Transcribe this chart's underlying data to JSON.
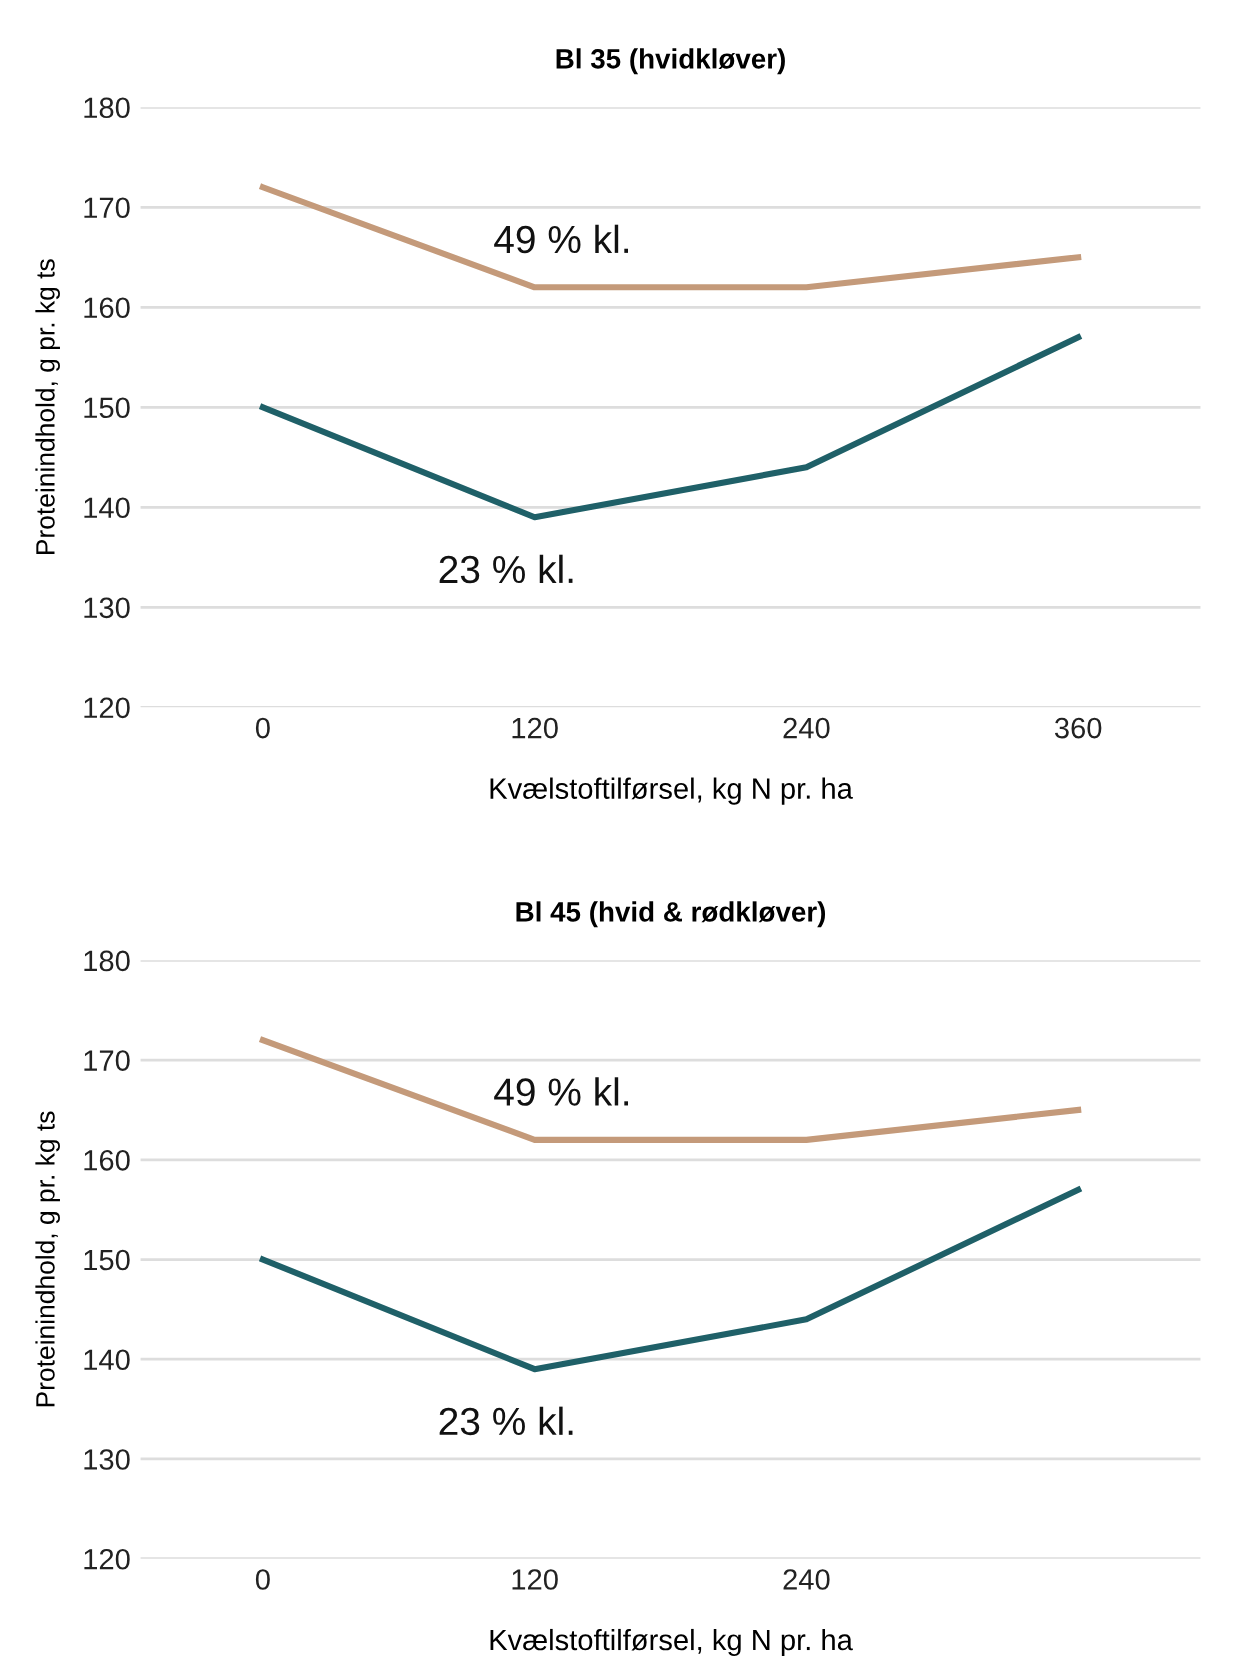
{
  "chart_data": [
    {
      "type": "line",
      "title": "Bl 35 (hvidkløver)",
      "xlabel": "Kvælstoftilførsel, kg N pr. ha",
      "ylabel": "Proteinindhold, g pr. kg ts",
      "categories": [
        "0",
        "120",
        "240",
        "360"
      ],
      "series": [
        {
          "color": "#c49a7a",
          "values": [
            172,
            162,
            162,
            165
          ]
        },
        {
          "color": "#1f6068",
          "values": [
            150,
            139,
            144,
            157
          ]
        }
      ],
      "annotations": [
        "49 % kl.",
        "23 % kl."
      ],
      "ylim": [
        120,
        180
      ],
      "yticks": [
        120,
        130,
        140,
        150,
        160,
        170,
        180
      ],
      "grid": "y",
      "marker": "none",
      "line_style": "solid"
    },
    {
      "type": "line",
      "title": "Bl 45 (hvid & rødkløver)",
      "xlabel": "Kvælstoftilførsel, kg N pr. ha",
      "ylabel": "Proteinindhold, g pr. kg ts",
      "categories": [
        "0",
        "120",
        "240",
        null
      ],
      "series": [
        {
          "color": "#c49a7a",
          "values": [
            172,
            162,
            162,
            165
          ]
        },
        {
          "color": "#1f6068",
          "values": [
            150,
            139,
            144,
            157
          ]
        }
      ],
      "annotations": [
        "49 % kl.",
        "23 % kl."
      ],
      "ylim": [
        120,
        180
      ],
      "yticks": [
        120,
        130,
        140,
        150,
        160,
        170,
        180
      ],
      "grid": "y",
      "marker": "none",
      "line_style": "solid"
    }
  ]
}
